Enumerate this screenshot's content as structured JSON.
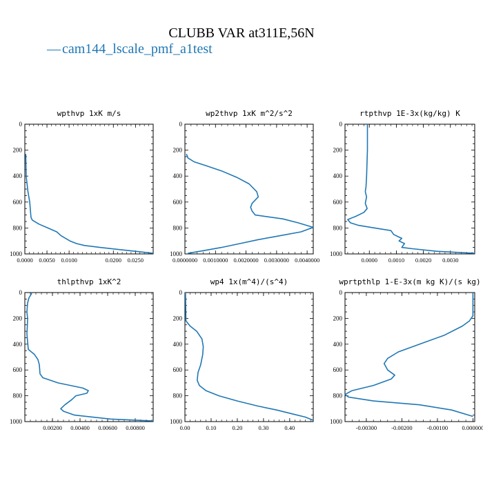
{
  "figure": {
    "title": "CLUBB VAR at311E,56N",
    "legend_label": "cam144_lscale_pmf_a1test",
    "legend_glyph": "—",
    "line_color": "#1f77b4"
  },
  "chart_data": [
    {
      "type": "line",
      "title": "wpthvp   1xK m/s",
      "xlim": [
        0,
        0.029
      ],
      "ylim": [
        1000,
        0
      ],
      "xticks": [
        "0.0000",
        "0.0050",
        "0.0100",
        "0.0200",
        "0.0250"
      ],
      "xtick_values": [
        0,
        0.005,
        0.01,
        0.02,
        0.025
      ],
      "yticks": [
        "0",
        "200",
        "400",
        "600",
        "800",
        "1000"
      ],
      "series": [
        {
          "x": [
            0.0002,
            0.0003,
            0.0007,
            0.0011,
            0.0013,
            0.0014,
            0.0017,
            0.0032,
            0.0052,
            0.0072,
            0.0082,
            0.0092,
            0.0102,
            0.0117,
            0.0135,
            0.017,
            0.021,
            0.025,
            0.029
          ],
          "y": [
            230,
            400,
            520,
            600,
            680,
            720,
            740,
            770,
            800,
            830,
            860,
            880,
            900,
            920,
            935,
            950,
            965,
            980,
            995
          ]
        }
      ]
    },
    {
      "type": "line",
      "title": "wp2thvp   1xK m^2/s^2",
      "xlim": [
        0,
        0.0042
      ],
      "ylim": [
        1000,
        0
      ],
      "xticks": [
        "0.0000000",
        "0.0010000",
        "0.0020000",
        "0.0030000",
        "0.0040000"
      ],
      "xtick_values": [
        0,
        0.001,
        0.002,
        0.003,
        0.004
      ],
      "yticks": [
        "0",
        "200",
        "400",
        "600",
        "800",
        "1000"
      ],
      "series": [
        {
          "x": [
            5e-05,
            0.0001,
            0.0003,
            0.0007,
            0.0012,
            0.0017,
            0.0021,
            0.00235,
            0.0024,
            0.0022,
            0.00215,
            0.0022,
            0.0023,
            0.0032,
            0.0037,
            0.0042,
            0.0038,
            0.0031,
            0.0024,
            0.0018,
            0.0012,
            0.0006,
            0.0001
          ],
          "y": [
            230,
            260,
            290,
            320,
            360,
            410,
            460,
            520,
            560,
            610,
            640,
            670,
            700,
            730,
            760,
            795,
            830,
            860,
            890,
            920,
            950,
            975,
            995
          ]
        }
      ]
    },
    {
      "type": "line",
      "title": "rtpthvp   1E-3x(kg/kg) K",
      "xlim": [
        -0.0009,
        0.0039
      ],
      "ylim": [
        1000,
        0
      ],
      "xticks": [
        "0.0000",
        "0.0010",
        "0.0020",
        "0.0030"
      ],
      "xtick_values": [
        0,
        0.001,
        0.002,
        0.003
      ],
      "yticks": [
        "0",
        "200",
        "400",
        "600",
        "800",
        "1000"
      ],
      "series": [
        {
          "x": [
            -7e-05,
            -7e-05,
            -0.0001,
            -0.00012,
            -0.00015,
            -0.0001,
            -0.00015,
            -8e-05,
            -0.0002,
            -0.0005,
            -0.0008,
            -0.0007,
            -0.0004,
            0.0002,
            0.0008,
            0.0009,
            0.0011,
            0.0012,
            0.0011,
            0.0013,
            0.0012,
            0.0016,
            0.0025,
            0.0039
          ],
          "y": [
            0,
            200,
            400,
            480,
            520,
            560,
            610,
            650,
            680,
            710,
            735,
            760,
            780,
            800,
            820,
            850,
            870,
            880,
            900,
            920,
            950,
            960,
            980,
            995
          ]
        }
      ]
    },
    {
      "type": "line",
      "title": "thlpthvp   1xK^2",
      "xlim": [
        0,
        0.0093
      ],
      "ylim": [
        1000,
        0
      ],
      "xticks": [
        "0.00200",
        "0.00400",
        "0.00600",
        "0.00800"
      ],
      "xtick_values": [
        0.002,
        0.004,
        0.006,
        0.008
      ],
      "yticks": [
        "0",
        "200",
        "400",
        "600",
        "800",
        "1000"
      ],
      "series": [
        {
          "x": [
            0.0005,
            0.00045,
            0.0003,
            0.0002,
            0.00015,
            0.0002,
            0.00018,
            0.00015,
            0.0002,
            0.00025,
            0.0007,
            0.00095,
            0.00105,
            0.0011,
            0.0013,
            0.0024,
            0.0042,
            0.0046,
            0.0045,
            0.0037,
            0.0034,
            0.0029,
            0.0026,
            0.0028,
            0.0036,
            0.0062,
            0.0093
          ],
          "y": [
            0,
            15,
            40,
            80,
            150,
            200,
            260,
            320,
            380,
            440,
            480,
            520,
            560,
            630,
            660,
            700,
            740,
            760,
            780,
            800,
            830,
            870,
            900,
            920,
            950,
            980,
            995
          ]
        }
      ]
    },
    {
      "type": "line",
      "title": "wp4   1x(m^4)/(s^4)",
      "xlim": [
        0,
        0.49
      ],
      "ylim": [
        1000,
        0
      ],
      "xticks": [
        "0.00",
        "0.10",
        "0.20",
        "0.30",
        "0.40"
      ],
      "xtick_values": [
        0,
        0.1,
        0.2,
        0.3,
        0.4
      ],
      "yticks": [
        "0",
        "200",
        "400",
        "600",
        "800",
        "1000"
      ],
      "series": [
        {
          "x": [
            0.002,
            0.004,
            0.02,
            0.045,
            0.065,
            0.07,
            0.068,
            0.06,
            0.05,
            0.047,
            0.055,
            0.08,
            0.13,
            0.2,
            0.28,
            0.35,
            0.41,
            0.46,
            0.49
          ],
          "y": [
            0,
            220,
            260,
            300,
            360,
            420,
            480,
            560,
            620,
            680,
            720,
            760,
            800,
            840,
            880,
            910,
            940,
            965,
            990
          ]
        }
      ]
    },
    {
      "type": "line",
      "title": "wprtpthlp   1-E-3x(m kg K)/(s kg)",
      "xlim": [
        -0.0036,
        5e-05
      ],
      "ylim": [
        1000,
        0
      ],
      "xticks": [
        "-0.00300",
        "-0.00200",
        "-0.00100",
        "0.000000"
      ],
      "xtick_values": [
        -0.003,
        -0.002,
        -0.001,
        0
      ],
      "yticks": [
        "0",
        "200",
        "400",
        "600",
        "800",
        "1000"
      ],
      "series": [
        {
          "x": [
            0.0,
            0.0,
            -0.0001,
            -0.0003,
            -0.0008,
            -0.0015,
            -0.0021,
            -0.0024,
            -0.0025,
            -0.0024,
            -0.0022,
            -0.0023,
            -0.0028,
            -0.0034,
            -0.0036,
            -0.0035,
            -0.0028,
            -0.0015,
            -0.0006,
            0.0
          ],
          "y": [
            0,
            180,
            220,
            260,
            330,
            400,
            460,
            510,
            550,
            600,
            640,
            670,
            720,
            760,
            790,
            810,
            840,
            870,
            910,
            960
          ]
        }
      ]
    }
  ]
}
